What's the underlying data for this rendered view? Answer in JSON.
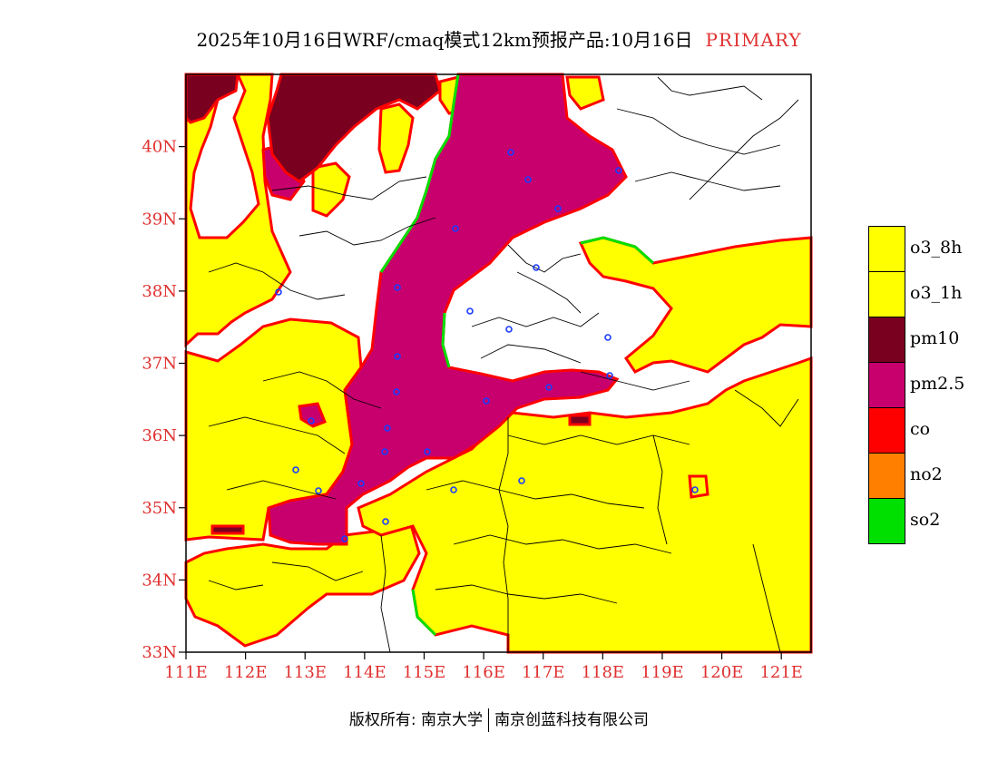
{
  "title": {
    "main": "2025年10月16日WRF/cmaq模式12km预报产品:10月16日",
    "tag": "PRIMARY"
  },
  "map": {
    "lon_range": [
      111,
      121.5
    ],
    "lat_range": [
      33,
      41
    ],
    "lat_ticks": [
      "33N",
      "34N",
      "35N",
      "36N",
      "37N",
      "38N",
      "39N",
      "40N"
    ],
    "lon_ticks": [
      "111E",
      "112E",
      "113E",
      "114E",
      "115E",
      "116E",
      "117E",
      "118E",
      "119E",
      "120E",
      "121E"
    ]
  },
  "legend": [
    {
      "label": "o3_8h",
      "color": "#ffff00"
    },
    {
      "label": "o3_1h",
      "color": "#ffff00"
    },
    {
      "label": "pm10",
      "color": "#7a0020"
    },
    {
      "label": "pm2.5",
      "color": "#c8006e"
    },
    {
      "label": "co",
      "color": "#ff0000"
    },
    {
      "label": "no2",
      "color": "#ff7f00"
    },
    {
      "label": "so2",
      "color": "#00e000"
    }
  ],
  "footer": {
    "left": "版权所有: 南京大学",
    "right": "南京创蓝科技有限公司"
  }
}
